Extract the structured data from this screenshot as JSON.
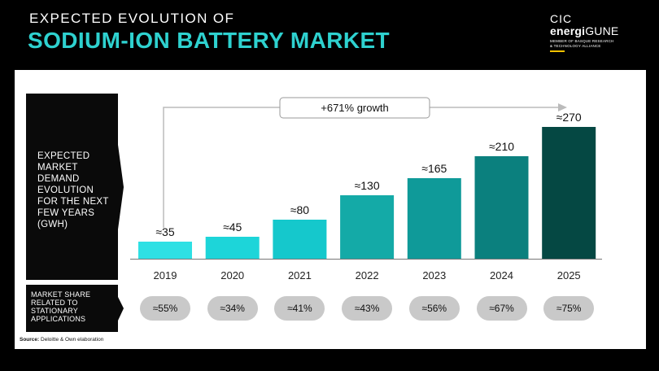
{
  "header": {
    "pre_title": "EXPECTED EVOLUTION OF",
    "title": "SODIUM-ION BATTERY MARKET"
  },
  "logo": {
    "cic": "CIC",
    "brand_bold": "energi",
    "brand_rest": "GUNE",
    "sub_line1": "MEMBER OF BASQUE RESEARCH",
    "sub_line2": "& TECHNOLOGY ALLIANCE"
  },
  "demand_label": [
    "EXPECTED",
    "MARKET",
    "DEMAND",
    "EVOLUTION",
    "FOR THE NEXT",
    "FEW YEARS",
    "(GWH)"
  ],
  "share_label": [
    "MARKET SHARE",
    "RELATED TO",
    "STATIONARY",
    "APPLICATIONS"
  ],
  "growth_label": "+671% growth",
  "source": {
    "label": "Source:",
    "text": "Deloitte & Own elaboration"
  },
  "colors": {
    "bars": [
      "#2ee0e4",
      "#1dd5d9",
      "#15c8cc",
      "#14aaa7",
      "#0f9a99",
      "#0b807e",
      "#054843"
    ],
    "accent": "#2ed1cf"
  },
  "chart_data": {
    "type": "bar",
    "title": "Expected market demand evolution for the next few years (GWh)",
    "categories": [
      "2019",
      "2020",
      "2021",
      "2022",
      "2023",
      "2024",
      "2025"
    ],
    "values": [
      35,
      45,
      80,
      130,
      165,
      210,
      270
    ],
    "data_labels": [
      "≈35",
      "≈45",
      "≈80",
      "≈130",
      "≈165",
      "≈210",
      "≈270"
    ],
    "ylabel": "GWh",
    "ylim": [
      0,
      280
    ],
    "grid": false,
    "stationary_share_labels": [
      "≈55%",
      "≈34%",
      "≈41%",
      "≈43%",
      "≈56%",
      "≈67%",
      "≈75%"
    ],
    "stationary_share_values": [
      55,
      34,
      41,
      43,
      56,
      67,
      75
    ]
  }
}
